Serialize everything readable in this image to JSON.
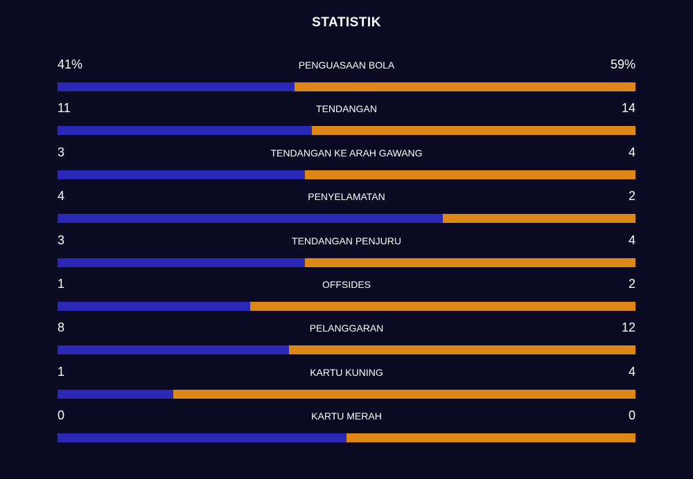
{
  "title": "STATISTIK",
  "colors": {
    "home": "#2b28b5",
    "away": "#dd8716",
    "background": "#0a0a23",
    "text": "#ffffff"
  },
  "stats": [
    {
      "label": "PENGUASAAN BOLA",
      "home": "41%",
      "away": "59%",
      "home_share": 0.41
    },
    {
      "label": "TENDANGAN",
      "home": "11",
      "away": "14",
      "home_share": 0.44
    },
    {
      "label": "TENDANGAN KE ARAH GAWANG",
      "home": "3",
      "away": "4",
      "home_share": 0.4286
    },
    {
      "label": "PENYELAMATAN",
      "home": "4",
      "away": "2",
      "home_share": 0.6667
    },
    {
      "label": "TENDANGAN PENJURU",
      "home": "3",
      "away": "4",
      "home_share": 0.4286
    },
    {
      "label": "OFFSIDES",
      "home": "1",
      "away": "2",
      "home_share": 0.3333
    },
    {
      "label": "PELANGGARAN",
      "home": "8",
      "away": "12",
      "home_share": 0.4
    },
    {
      "label": "KARTU KUNING",
      "home": "1",
      "away": "4",
      "home_share": 0.2
    },
    {
      "label": "KARTU MERAH",
      "home": "0",
      "away": "0",
      "home_share": 0.5
    }
  ]
}
